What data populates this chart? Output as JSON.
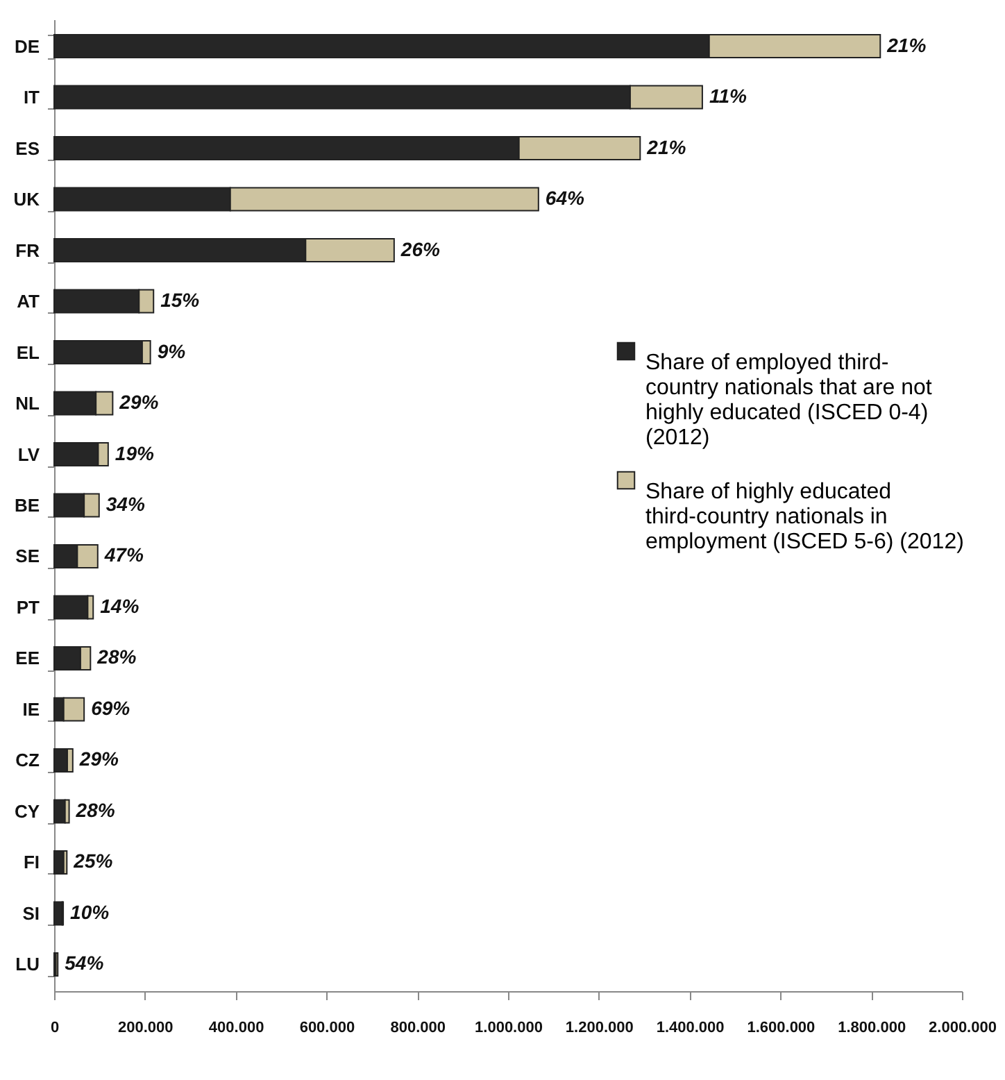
{
  "chart_data": {
    "type": "bar",
    "orientation": "horizontal",
    "stacked": true,
    "categories": [
      "DE",
      "IT",
      "ES",
      "UK",
      "FR",
      "AT",
      "EL",
      "NL",
      "LV",
      "BE",
      "SE",
      "PT",
      "EE",
      "IE",
      "CZ",
      "CY",
      "FI",
      "SI",
      "LU"
    ],
    "series": [
      {
        "name": "Share of employed third-country nationals that are not highly educated (ISCED 0-4) (2012)",
        "color": "#262626",
        "values": [
          1443000,
          1269000,
          1024000,
          388000,
          554000,
          187000,
          194000,
          92000,
          97000,
          66000,
          51000,
          74000,
          58000,
          21000,
          29000,
          24000,
          21000,
          18000,
          4000
        ]
      },
      {
        "name": "Share of highly educated third-country nationals in employment (ISCED 5-6) (2012)",
        "color": "#cdc3a0",
        "values": [
          377000,
          159000,
          267000,
          679000,
          195000,
          32000,
          18000,
          37000,
          22000,
          33000,
          45000,
          12000,
          22000,
          45000,
          12000,
          9000,
          7000,
          2000,
          4000
        ]
      }
    ],
    "annotations": [
      {
        "text": "21%",
        "x": 1820000,
        "y": "DE"
      },
      {
        "text": "11%",
        "x": 1428000,
        "y": "IT"
      },
      {
        "text": "21%",
        "x": 1291000,
        "y": "ES"
      },
      {
        "text": "64%",
        "x": 1067000,
        "y": "UK"
      },
      {
        "text": "26%",
        "x": 749000,
        "y": "FR"
      },
      {
        "text": "15%",
        "x": 219000,
        "y": "AT"
      },
      {
        "text": "9%",
        "x": 212000,
        "y": "EL"
      },
      {
        "text": "29%",
        "x": 129000,
        "y": "NL"
      },
      {
        "text": "19%",
        "x": 119000,
        "y": "LV"
      },
      {
        "text": "34%",
        "x": 99000,
        "y": "BE"
      },
      {
        "text": "47%",
        "x": 96000,
        "y": "SE"
      },
      {
        "text": "14%",
        "x": 86000,
        "y": "PT"
      },
      {
        "text": "28%",
        "x": 80000,
        "y": "EE"
      },
      {
        "text": "69%",
        "x": 66000,
        "y": "IE"
      },
      {
        "text": "29%",
        "x": 41000,
        "y": "CZ"
      },
      {
        "text": "28%",
        "x": 33000,
        "y": "CY"
      },
      {
        "text": "25%",
        "x": 28000,
        "y": "FI"
      },
      {
        "text": "10%",
        "x": 20000,
        "y": "SI"
      },
      {
        "text": "54%",
        "x": 8000,
        "y": "LU"
      }
    ],
    "xlim": [
      0,
      2000000
    ],
    "xticks": [
      0,
      {
        "value": 200000,
        "label": "200.000"
      },
      {
        "value": 400000,
        "label": "400.000"
      },
      {
        "value": 600000,
        "label": "600.000"
      },
      {
        "value": 800000,
        "label": "800.000"
      },
      {
        "value": 1000000,
        "label": "1.000.000"
      },
      {
        "value": 1200000,
        "label": "1.200.000"
      },
      {
        "value": 1400000,
        "label": "1.400.000"
      },
      {
        "value": 1600000,
        "label": "1.600.000"
      },
      {
        "value": 1800000,
        "label": "1.800.000"
      },
      {
        "value": 2000000,
        "label": "2.000.000"
      }
    ],
    "legend": "right",
    "grid": false
  }
}
